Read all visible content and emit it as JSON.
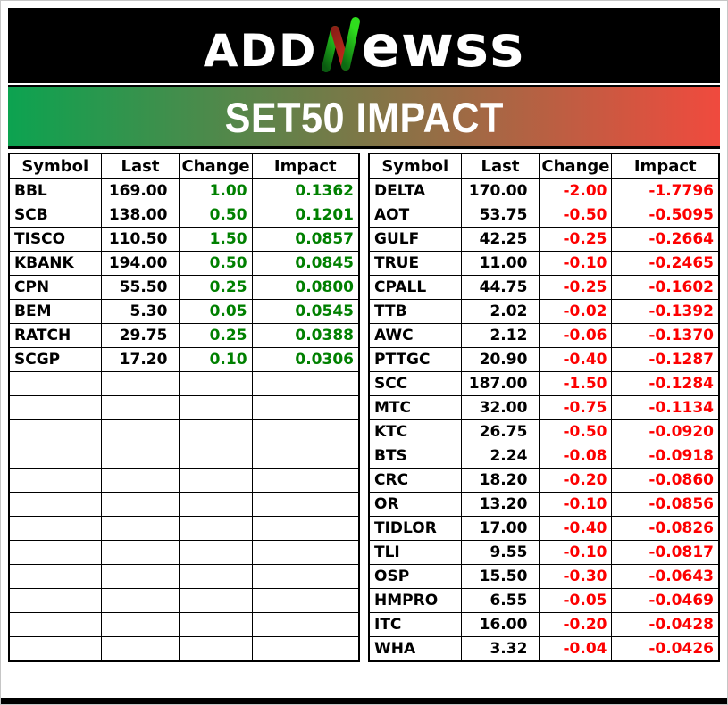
{
  "brand": {
    "prefix": "ADD",
    "suffix": "ewss",
    "n_icon": "candlestick-n-icon",
    "n_up_color": "#23c31d",
    "n_down_color": "#c1271b"
  },
  "banner": {
    "title": "SET50 IMPACT",
    "gradient_left": "#0ca350",
    "gradient_right": "#f04a3e"
  },
  "colors": {
    "positive": "#008000",
    "negative": "#fd0000"
  },
  "chart_data": [
    {
      "type": "table",
      "title": "SET50 IMPACT - positive contributors",
      "columns": [
        "Symbol",
        "Last",
        "Change",
        "Impact"
      ],
      "rows": [
        [
          "BBL",
          "169.00",
          "1.00",
          "0.1362"
        ],
        [
          "SCB",
          "138.00",
          "0.50",
          "0.1201"
        ],
        [
          "TISCO",
          "110.50",
          "1.50",
          "0.0857"
        ],
        [
          "KBANK",
          "194.00",
          "0.50",
          "0.0845"
        ],
        [
          "CPN",
          "55.50",
          "0.25",
          "0.0800"
        ],
        [
          "BEM",
          "5.30",
          "0.05",
          "0.0545"
        ],
        [
          "RATCH",
          "29.75",
          "0.25",
          "0.0388"
        ],
        [
          "SCGP",
          "17.20",
          "0.10",
          "0.0306"
        ]
      ],
      "empty_rows": 12
    },
    {
      "type": "table",
      "title": "SET50 IMPACT - negative contributors",
      "columns": [
        "Symbol",
        "Last",
        "Change",
        "Impact"
      ],
      "rows": [
        [
          "DELTA",
          "170.00",
          "-2.00",
          "-1.7796"
        ],
        [
          "AOT",
          "53.75",
          "-0.50",
          "-0.5095"
        ],
        [
          "GULF",
          "42.25",
          "-0.25",
          "-0.2664"
        ],
        [
          "TRUE",
          "11.00",
          "-0.10",
          "-0.2465"
        ],
        [
          "CPALL",
          "44.75",
          "-0.25",
          "-0.1602"
        ],
        [
          "TTB",
          "2.02",
          "-0.02",
          "-0.1392"
        ],
        [
          "AWC",
          "2.12",
          "-0.06",
          "-0.1370"
        ],
        [
          "PTTGC",
          "20.90",
          "-0.40",
          "-0.1287"
        ],
        [
          "SCC",
          "187.00",
          "-1.50",
          "-0.1284"
        ],
        [
          "MTC",
          "32.00",
          "-0.75",
          "-0.1134"
        ],
        [
          "KTC",
          "26.75",
          "-0.50",
          "-0.0920"
        ],
        [
          "BTS",
          "2.24",
          "-0.08",
          "-0.0918"
        ],
        [
          "CRC",
          "18.20",
          "-0.20",
          "-0.0860"
        ],
        [
          "OR",
          "13.20",
          "-0.10",
          "-0.0856"
        ],
        [
          "TIDLOR",
          "17.00",
          "-0.40",
          "-0.0826"
        ],
        [
          "TLI",
          "9.55",
          "-0.10",
          "-0.0817"
        ],
        [
          "OSP",
          "15.50",
          "-0.30",
          "-0.0643"
        ],
        [
          "HMPRO",
          "6.55",
          "-0.05",
          "-0.0469"
        ],
        [
          "ITC",
          "16.00",
          "-0.20",
          "-0.0428"
        ],
        [
          "WHA",
          "3.32",
          "-0.04",
          "-0.0426"
        ]
      ],
      "empty_rows": 0
    }
  ]
}
